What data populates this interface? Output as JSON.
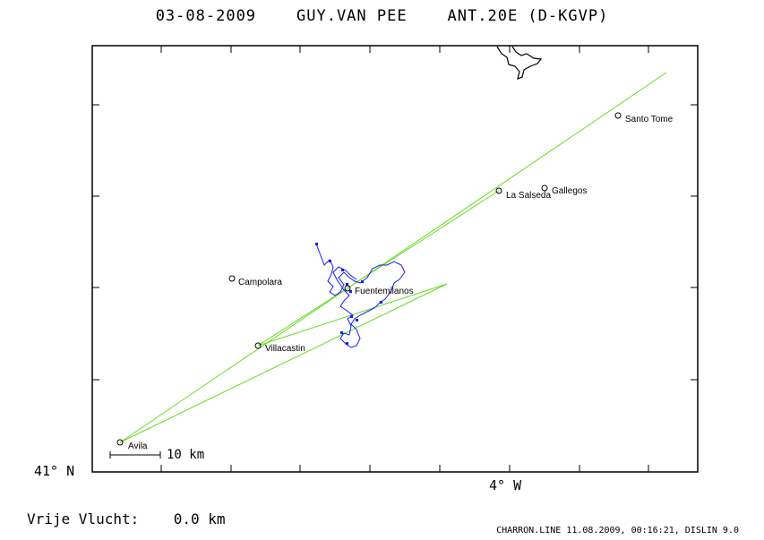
{
  "header": {
    "date": "03-08-2009",
    "pilot": "GUY.VAN PEE",
    "aircraft": "ANT.20E (D-KGVP)"
  },
  "axes": {
    "latitude_label": "41° N",
    "longitude_label": "4° W"
  },
  "scale_bar": {
    "label": "10 km"
  },
  "places": [
    {
      "name": "Santo Tome"
    },
    {
      "name": "La Salseda"
    },
    {
      "name": "Gallegos"
    },
    {
      "name": "Campolara"
    },
    {
      "name": "Fuentemilanos"
    },
    {
      "name": "Villacastin"
    },
    {
      "name": "Avila"
    }
  ],
  "stats": {
    "label": "Vrije Vlucht:",
    "value": "0.0 km"
  },
  "footer": {
    "text": "CHARRON.LINE 11.08.2009, 00:16:21, DISLIN 9.0"
  },
  "colors": {
    "task_line": "#66dd22",
    "track": "#1a1aff",
    "frame": "#000000"
  }
}
